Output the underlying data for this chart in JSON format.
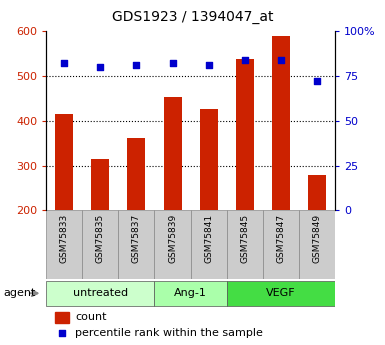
{
  "title": "GDS1923 / 1394047_at",
  "samples": [
    "GSM75833",
    "GSM75835",
    "GSM75837",
    "GSM75839",
    "GSM75841",
    "GSM75845",
    "GSM75847",
    "GSM75849"
  ],
  "counts": [
    415,
    315,
    362,
    452,
    427,
    537,
    590,
    280
  ],
  "percentile_ranks": [
    82,
    80,
    81,
    82,
    81,
    84,
    84,
    72
  ],
  "ymin": 200,
  "ymax": 600,
  "yticks": [
    200,
    300,
    400,
    500,
    600
  ],
  "right_yticks": [
    0,
    25,
    50,
    75,
    100
  ],
  "right_ytick_labels": [
    "0",
    "25",
    "50",
    "75",
    "100%"
  ],
  "bar_color": "#cc2200",
  "dot_color": "#0000cc",
  "groups": [
    {
      "label": "untreated",
      "start": 0,
      "end": 3,
      "color": "#ccffcc"
    },
    {
      "label": "Ang-1",
      "start": 3,
      "end": 5,
      "color": "#aaffaa"
    },
    {
      "label": "VEGF",
      "start": 5,
      "end": 8,
      "color": "#44dd44"
    }
  ],
  "agent_label": "agent",
  "legend_count_label": "count",
  "legend_pct_label": "percentile rank within the sample",
  "bar_width": 0.5,
  "grid_color": "black",
  "sample_box_color": "#cccccc",
  "title_fontsize": 10
}
